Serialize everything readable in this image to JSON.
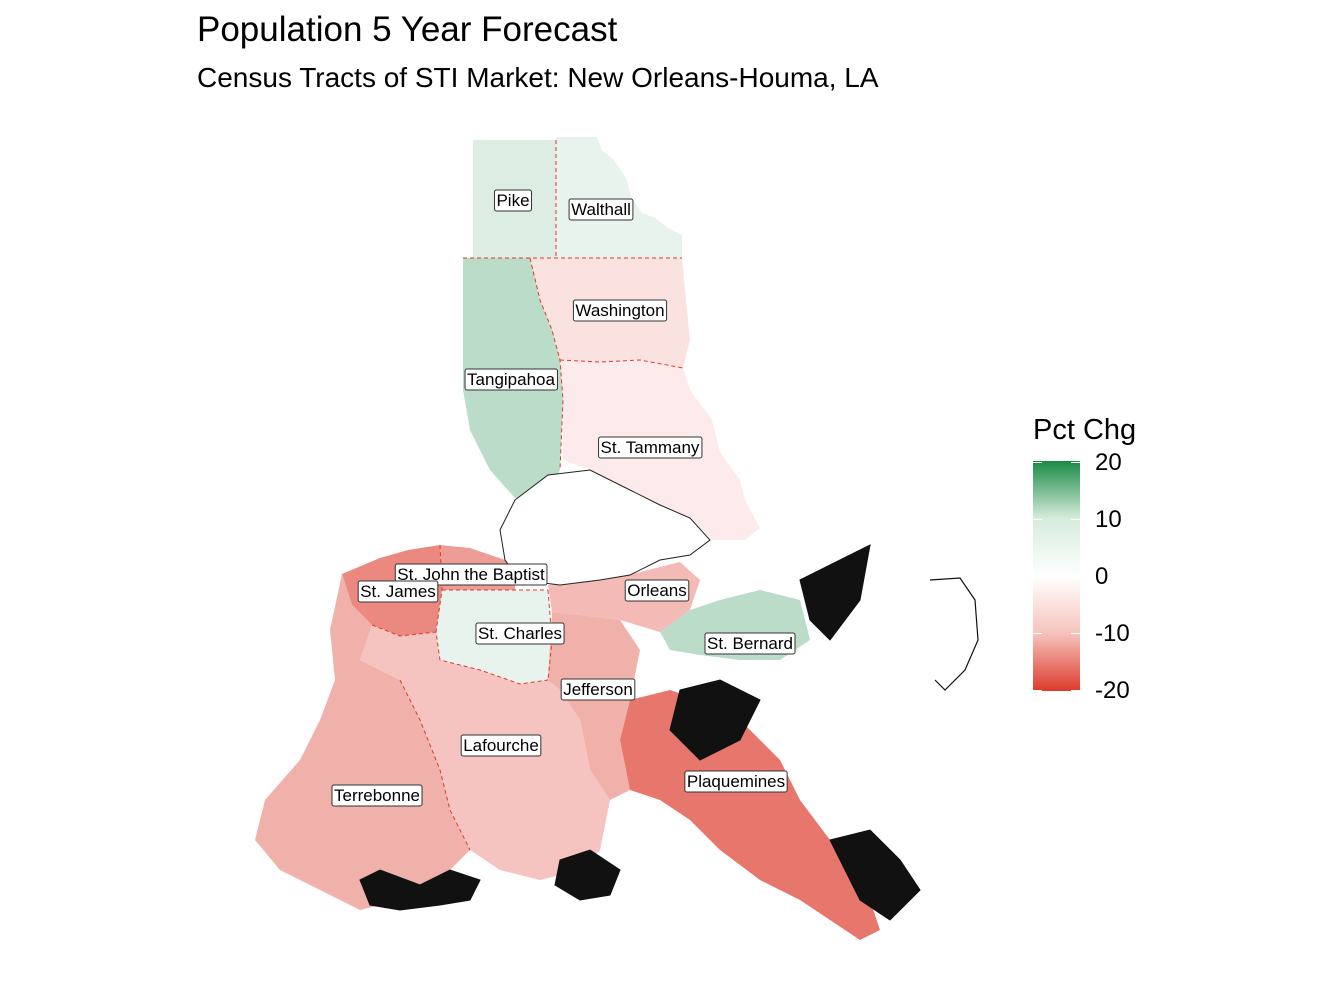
{
  "title": "Population 5 Year Forecast",
  "subtitle": "Census Tracts of STI Market: New Orleans-Houma, LA",
  "legend": {
    "title": "Pct Chg",
    "ticks": [
      "20",
      "10",
      "0",
      "-10",
      "-20"
    ],
    "colors": {
      "high": "#1a8a46",
      "mid": "#ffffff",
      "low": "#dd3b2d"
    },
    "range": [
      -20,
      20
    ]
  },
  "counties": [
    {
      "name": "Pike",
      "pct_chg": 3
    },
    {
      "name": "Walthall",
      "pct_chg": 2
    },
    {
      "name": "Washington",
      "pct_chg": -3
    },
    {
      "name": "Tangipahoa",
      "pct_chg": 6
    },
    {
      "name": "St. Tammany",
      "pct_chg": -2
    },
    {
      "name": "St. John the Baptist",
      "pct_chg": -10
    },
    {
      "name": "St. James",
      "pct_chg": -12
    },
    {
      "name": "St. Charles",
      "pct_chg": 2
    },
    {
      "name": "Orleans",
      "pct_chg": -7
    },
    {
      "name": "St. Bernard",
      "pct_chg": 6
    },
    {
      "name": "Jefferson",
      "pct_chg": -8
    },
    {
      "name": "Lafourche",
      "pct_chg": -6
    },
    {
      "name": "Terrebonne",
      "pct_chg": -8
    },
    {
      "name": "Plaquemines",
      "pct_chg": -14
    }
  ]
}
